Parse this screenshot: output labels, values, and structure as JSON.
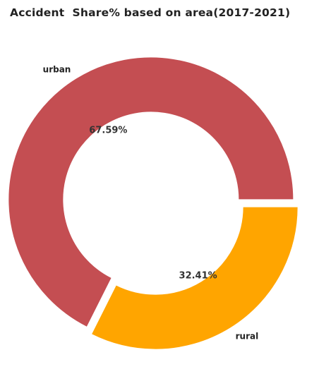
{
  "chart_data": {
    "type": "pie",
    "style": "donut",
    "title": "Accident  Share% based on area(2017-2021)",
    "slices": [
      {
        "label": "urban",
        "value": 67.59,
        "pct_label": "67.59%",
        "color": "#c44e52"
      },
      {
        "label": "rural",
        "value": 32.41,
        "pct_label": "32.41%",
        "color": "#ffa500"
      }
    ]
  }
}
